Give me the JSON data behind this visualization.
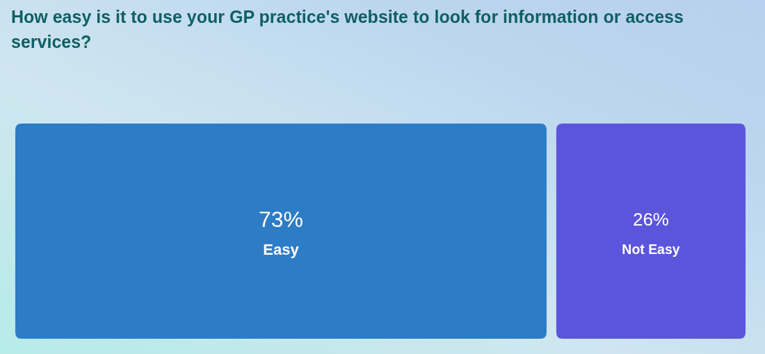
{
  "chart_data": {
    "type": "other",
    "title": "How easy is it to use your GP practice's website to look for information or access services?",
    "categories": [
      "Easy",
      "Not Easy"
    ],
    "values": [
      73,
      26
    ],
    "value_labels": [
      "73%",
      "26%"
    ],
    "colors": [
      "#2c7cc6",
      "#5a55da"
    ]
  }
}
